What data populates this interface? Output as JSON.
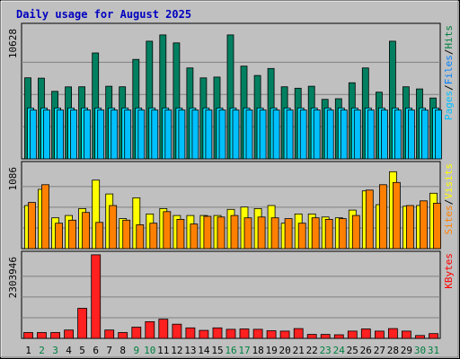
{
  "chart_data": {
    "type": "bar",
    "title": "Daily usage for August 2025",
    "days": [
      "1",
      "2",
      "3",
      "4",
      "5",
      "6",
      "7",
      "8",
      "9",
      "10",
      "11",
      "12",
      "13",
      "14",
      "15",
      "16",
      "17",
      "18",
      "19",
      "20",
      "21",
      "22",
      "23",
      "24",
      "25",
      "26",
      "27",
      "28",
      "29",
      "30",
      "31"
    ],
    "weekend_days": [
      "2",
      "3",
      "9",
      "10",
      "16",
      "17",
      "23",
      "24",
      "30",
      "31"
    ],
    "panels": [
      {
        "name": "top",
        "max_label": "10628",
        "ylim": [
          0,
          10628
        ],
        "legend": [
          {
            "label": "Pages",
            "color": "#00c0ff"
          },
          {
            "label": "/",
            "color": "#000000"
          },
          {
            "label": "Files",
            "color": "#0080ff"
          },
          {
            "label": "/",
            "color": "#000000"
          },
          {
            "label": "Hits",
            "color": "#008040"
          }
        ],
        "series": [
          {
            "name": "Hits",
            "color": "#008060",
            "values": [
              6620,
              6590,
              5510,
              5880,
              5890,
              8650,
              5930,
              5890,
              8120,
              9610,
              10128,
              9470,
              7430,
              6610,
              6680,
              10128,
              7570,
              6810,
              7380,
              5890,
              5770,
              5930,
              4860,
              4910,
              6220,
              7430,
              5450,
              9610,
              5890,
              5710,
              4970
            ]
          },
          {
            "name": "Files",
            "color": "#00e0ff",
            "values": [
              4160,
              4160,
              4160,
              4160,
              4160,
              4160,
              4160,
              4160,
              4160,
              4160,
              4160,
              4160,
              4160,
              4160,
              4160,
              4160,
              4160,
              4160,
              4160,
              4160,
              4160,
              4160,
              4160,
              4160,
              4160,
              4160,
              4160,
              4160,
              4160,
              4160,
              4160
            ]
          },
          {
            "name": "Pages",
            "color": "#00c0ff",
            "values": [
              3990,
              3990,
              3990,
              3990,
              3990,
              3990,
              3990,
              3990,
              3990,
              3990,
              3990,
              3990,
              3990,
              3990,
              3990,
              3990,
              3990,
              3990,
              3990,
              3990,
              3990,
              3990,
              3990,
              3990,
              3990,
              3990,
              3990,
              3990,
              3990,
              3990,
              3990
            ]
          }
        ]
      },
      {
        "name": "middle",
        "max_label": "1086",
        "ylim": [
          0,
          1086
        ],
        "legend": [
          {
            "label": "Sites",
            "color": "#ff8000"
          },
          {
            "label": "/",
            "color": "#000000"
          },
          {
            "label": "Visits",
            "color": "#ffff00"
          }
        ],
        "series": [
          {
            "name": "Visits",
            "color": "#ffff00",
            "values": [
              560,
              770,
              400,
              430,
              520,
              890,
              710,
              390,
              660,
              450,
              520,
              430,
              430,
              430,
              430,
              510,
              540,
              520,
              560,
              330,
              450,
              450,
              410,
              400,
              500,
              750,
              570,
              1000,
              550,
              560,
              720
            ]
          },
          {
            "name": "Sites",
            "color": "#ff8000",
            "values": [
              600,
              830,
              330,
              370,
              470,
              340,
              560,
              370,
              310,
              330,
              480,
              380,
              320,
              420,
              410,
              430,
              400,
              410,
              400,
              390,
              330,
              400,
              380,
              390,
              430,
              760,
              830,
              860,
              560,
              620,
              590
            ]
          }
        ]
      },
      {
        "name": "bottom",
        "max_label": "2303946",
        "ylim": [
          0,
          2303946
        ],
        "legend": [
          {
            "label": "KBytes",
            "color": "#ff0000"
          }
        ],
        "series": [
          {
            "name": "KBytes",
            "color": "#ff2020",
            "values": [
              160000,
              160000,
              160000,
              230000,
              830000,
              2303946,
              230000,
              160000,
              310000,
              460000,
              530000,
              390000,
              290000,
              220000,
              290000,
              250000,
              260000,
              250000,
              210000,
              200000,
              270000,
              110000,
              110000,
              100000,
              200000,
              260000,
              200000,
              270000,
              200000,
              80000,
              130000
            ]
          }
        ]
      }
    ]
  }
}
